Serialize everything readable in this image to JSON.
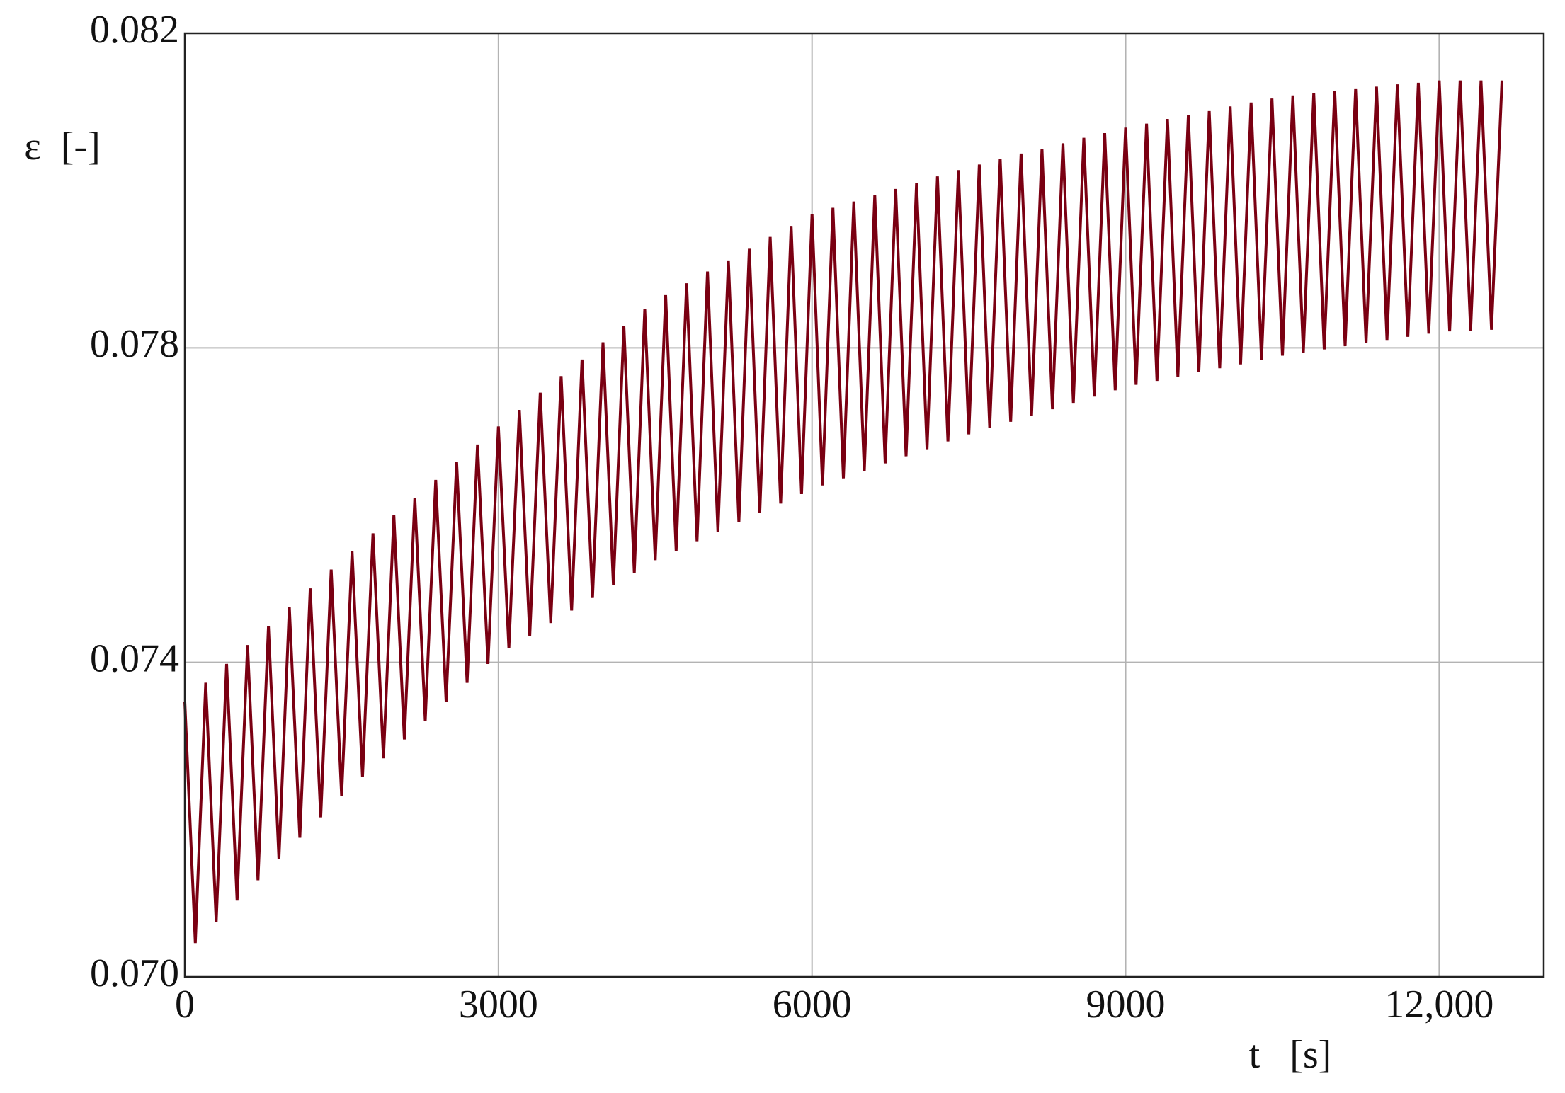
{
  "chart_data": {
    "type": "line",
    "y_label": "ε  [-]",
    "x_label": "t   [s]",
    "color": "#7a0012",
    "grid": true,
    "xlim": [
      0,
      13000
    ],
    "ylim": [
      0.07,
      0.082
    ],
    "xticks": [
      0,
      3000,
      6000,
      9000,
      {
        "value": 12000,
        "label": "12,000"
      }
    ],
    "yticks": [
      {
        "value": 0.07,
        "label": "0.070"
      },
      0.074,
      0.078,
      0.082
    ],
    "x": [
      0,
      100,
      200,
      300,
      400,
      500,
      600,
      700,
      800,
      900,
      1000,
      1100,
      1200,
      1300,
      1400,
      1500,
      1600,
      1700,
      1800,
      1900,
      2000,
      2100,
      2200,
      2300,
      2400,
      2500,
      2600,
      2700,
      2800,
      2900,
      3000,
      3100,
      3200,
      3300,
      3400,
      3500,
      3600,
      3700,
      3800,
      3900,
      4000,
      4100,
      4200,
      4300,
      4400,
      4500,
      4600,
      4700,
      4800,
      4900,
      5000,
      5100,
      5200,
      5300,
      5400,
      5500,
      5600,
      5700,
      5800,
      5900,
      6000,
      6100,
      6200,
      6300,
      6400,
      6500,
      6600,
      6700,
      6800,
      6900,
      7000,
      7100,
      7200,
      7300,
      7400,
      7500,
      7600,
      7700,
      7800,
      7900,
      8000,
      8100,
      8200,
      8300,
      8400,
      8500,
      8600,
      8700,
      8800,
      8900,
      9000,
      9100,
      9200,
      9300,
      9400,
      9500,
      9600,
      9700,
      9800,
      9900,
      10000,
      10100,
      10200,
      10300,
      10400,
      10500,
      10600,
      10700,
      10800,
      10900,
      11000,
      11100,
      11200,
      11300,
      11400,
      11500,
      11600,
      11700,
      11800,
      11900,
      12000,
      12100,
      12200,
      12300,
      12400,
      12500,
      12600
    ],
    "values": [
      0.0735,
      0.07043,
      0.07374,
      0.0707,
      0.07398,
      0.07097,
      0.07422,
      0.07123,
      0.07446,
      0.0715,
      0.0747,
      0.07177,
      0.07494,
      0.07203,
      0.07518,
      0.0723,
      0.07541,
      0.07254,
      0.07564,
      0.07278,
      0.07587,
      0.07302,
      0.07609,
      0.07326,
      0.07632,
      0.0735,
      0.07655,
      0.07374,
      0.07677,
      0.07398,
      0.077,
      0.07418,
      0.07721,
      0.07434,
      0.07743,
      0.0745,
      0.07764,
      0.07466,
      0.07785,
      0.07482,
      0.07807,
      0.07498,
      0.07828,
      0.07514,
      0.07849,
      0.0753,
      0.07867,
      0.07542,
      0.07882,
      0.07554,
      0.07897,
      0.07566,
      0.07911,
      0.07578,
      0.07926,
      0.0759,
      0.07941,
      0.07602,
      0.07955,
      0.07614,
      0.0797,
      0.07625,
      0.07978,
      0.07634,
      0.07986,
      0.07643,
      0.07994,
      0.07653,
      0.08002,
      0.07662,
      0.0801,
      0.07671,
      0.08018,
      0.07681,
      0.08026,
      0.0769,
      0.08033,
      0.07698,
      0.0804,
      0.07706,
      0.08047,
      0.07714,
      0.08053,
      0.07722,
      0.0806,
      0.0773,
      0.08067,
      0.07738,
      0.08073,
      0.07746,
      0.0808,
      0.07753,
      0.08085,
      0.07758,
      0.08091,
      0.07763,
      0.08096,
      0.07769,
      0.08101,
      0.07774,
      0.08107,
      0.07779,
      0.08112,
      0.07785,
      0.08117,
      0.0779,
      0.08121,
      0.07794,
      0.08124,
      0.07798,
      0.08127,
      0.07802,
      0.08129,
      0.07806,
      0.08132,
      0.0781,
      0.08135,
      0.07814,
      0.08137,
      0.07818,
      0.0814,
      0.07821,
      0.0814,
      0.07822,
      0.0814,
      0.07823,
      0.0814
    ]
  }
}
